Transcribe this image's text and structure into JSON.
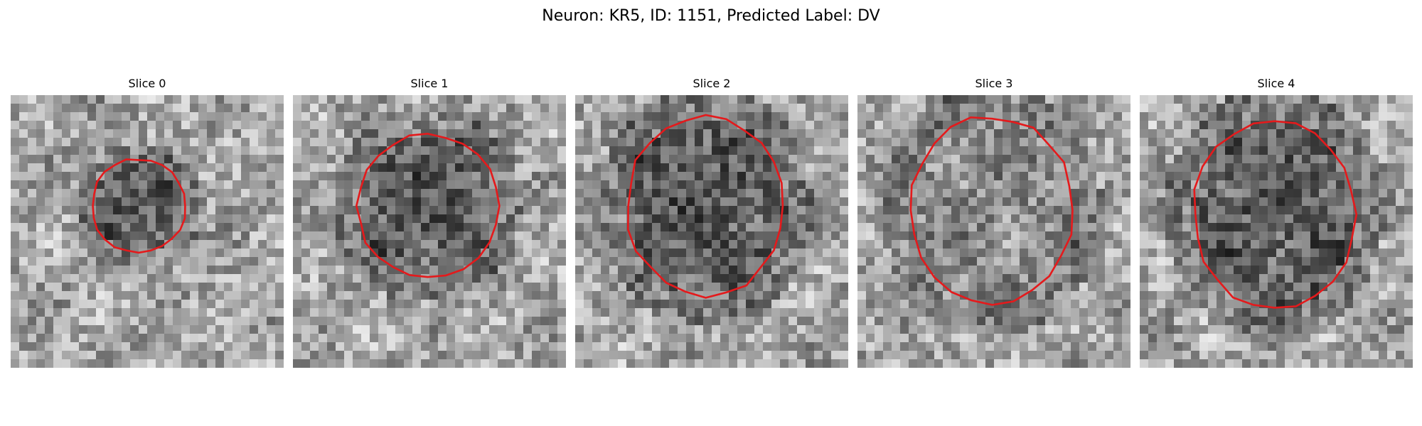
{
  "figure": {
    "title": "Neuron: KR5, ID: 1151, Predicted Label: DV"
  },
  "panels": [
    {
      "title": "Slice 0",
      "contour_color": "#e41a1c",
      "dark_center": true
    },
    {
      "title": "Slice 1",
      "contour_color": "#e41a1c",
      "dark_center": true
    },
    {
      "title": "Slice 2",
      "contour_color": "#e41a1c",
      "dark_center": true
    },
    {
      "title": "Slice 3",
      "contour_color": "#e41a1c",
      "dark_center": false
    },
    {
      "title": "Slice 4",
      "contour_color": "#e41a1c",
      "dark_center": true
    }
  ],
  "colormap": "gray"
}
